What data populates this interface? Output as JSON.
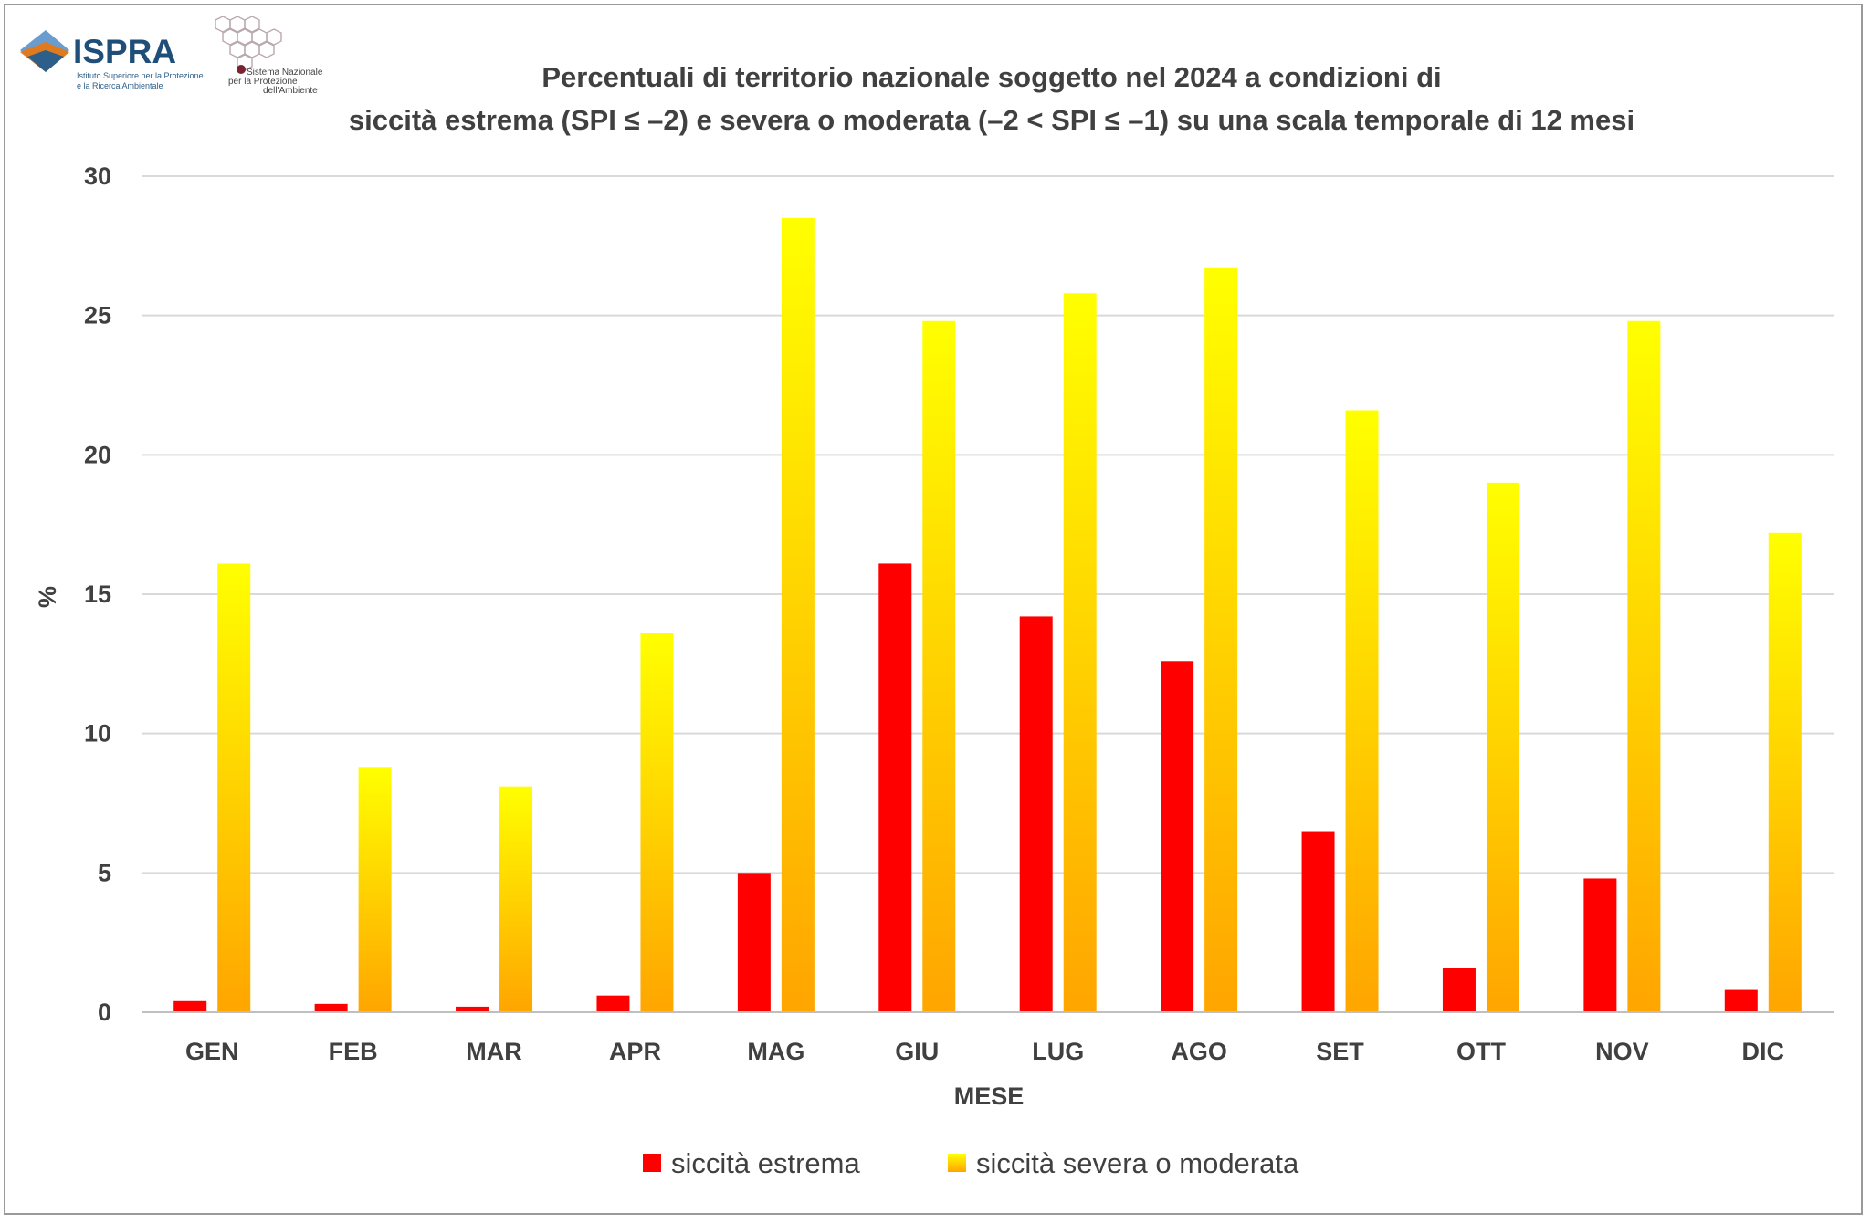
{
  "logos": {
    "ispra_name": "ISPRA",
    "ispra_tagline_1": "Istituto Superiore per la Protezione",
    "ispra_tagline_2": "e la Ricerca Ambientale",
    "snpa_line_1": "Sistema Nazionale",
    "snpa_line_2": "per la Protezione",
    "snpa_line_3": "dell'Ambiente"
  },
  "chart_data": {
    "type": "bar",
    "title_line_1": "Percentuali di territorio nazionale soggetto nel 2024 a condizioni di",
    "title_line_2": "siccità estrema (SPI ≤ –2) e severa o moderata (–2 < SPI ≤ –1) su una scala temporale di 12 mesi",
    "xlabel": "MESE",
    "ylabel": "%",
    "ylim": [
      0,
      30
    ],
    "yticks": [
      0,
      5,
      10,
      15,
      20,
      25,
      30
    ],
    "grid": true,
    "legend_position": "bottom",
    "categories": [
      "GEN",
      "FEB",
      "MAR",
      "APR",
      "MAG",
      "GIU",
      "LUG",
      "AGO",
      "SET",
      "OTT",
      "NOV",
      "DIC"
    ],
    "series": [
      {
        "name": "siccità estrema",
        "color": "#ff0000",
        "values": [
          0.4,
          0.3,
          0.2,
          0.6,
          5.0,
          16.1,
          14.2,
          12.6,
          6.5,
          1.6,
          4.8,
          0.8
        ]
      },
      {
        "name": "siccità severa o moderata",
        "color_top": "#ffff00",
        "color_bottom": "#ffa500",
        "values": [
          16.1,
          8.8,
          8.1,
          13.6,
          28.5,
          24.8,
          25.8,
          26.7,
          21.6,
          19.0,
          24.8,
          17.2
        ]
      }
    ]
  }
}
